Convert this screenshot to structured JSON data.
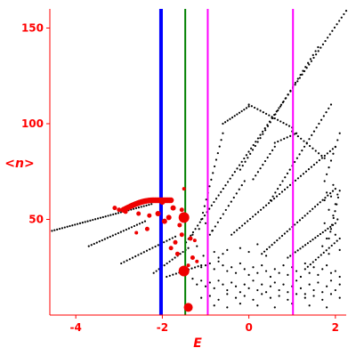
{
  "chart_data": {
    "type": "scatter",
    "title": "",
    "xlabel": "E",
    "ylabel": "<n>",
    "xlim": [
      -4.6,
      2.25
    ],
    "ylim": [
      0,
      160
    ],
    "xticks": [
      -4,
      -2,
      0,
      2
    ],
    "yticks": [
      50,
      100,
      150
    ],
    "grid": false,
    "colors": {
      "axis": "#ff0000",
      "points": "#000000",
      "markers": "#ee0000",
      "blue_line": "#0000ff",
      "green_line": "#008000",
      "magenta_line": "#ff00ff"
    },
    "vertical_lines": [
      {
        "x": -2.03,
        "color": "#0000ff",
        "width": 4
      },
      {
        "x": -1.47,
        "color": "#008000",
        "width": 2
      },
      {
        "x": -0.95,
        "color": "#ff00ff",
        "width": 2
      },
      {
        "x": 1.02,
        "color": "#ff00ff",
        "width": 2
      }
    ],
    "line_series": [
      {
        "start": [
          -4.55,
          44
        ],
        "end": [
          -2.25,
          58
        ],
        "n": 40
      },
      {
        "start": [
          -3.7,
          36
        ],
        "end": [
          -2.4,
          49
        ],
        "n": 22
      },
      {
        "start": [
          -2.95,
          27
        ],
        "end": [
          -1.7,
          41
        ],
        "n": 20
      },
      {
        "start": [
          -2.2,
          22
        ],
        "end": [
          -1.4,
          35
        ],
        "n": 14
      },
      {
        "start": [
          -1.9,
          20
        ],
        "end": [
          -1.1,
          26
        ],
        "n": 12
      },
      {
        "start": [
          -1.45,
          38
        ],
        "end": [
          2.25,
          159
        ],
        "n": 70
      },
      {
        "start": [
          -1.1,
          50
        ],
        "end": [
          -0.6,
          95
        ],
        "n": 14
      },
      {
        "start": [
          -0.6,
          100
        ],
        "end": [
          0.0,
          109
        ],
        "n": 12
      },
      {
        "start": [
          0.0,
          110
        ],
        "end": [
          1.0,
          98
        ],
        "n": 16
      },
      {
        "start": [
          1.0,
          96
        ],
        "end": [
          1.75,
          82
        ],
        "n": 12
      },
      {
        "start": [
          -0.2,
          76
        ],
        "end": [
          1.6,
          140
        ],
        "n": 32
      },
      {
        "start": [
          -0.9,
          42
        ],
        "end": [
          -0.1,
          70
        ],
        "n": 14
      },
      {
        "start": [
          0.1,
          71
        ],
        "end": [
          0.6,
          88
        ],
        "n": 10
      },
      {
        "start": [
          0.6,
          90
        ],
        "end": [
          1.1,
          95
        ],
        "n": 8
      },
      {
        "start": [
          0.5,
          60
        ],
        "end": [
          1.9,
          110
        ],
        "n": 26
      },
      {
        "start": [
          -0.4,
          42
        ],
        "end": [
          2.0,
          88
        ],
        "n": 40
      },
      {
        "start": [
          0.3,
          32
        ],
        "end": [
          2.0,
          66
        ],
        "n": 30
      },
      {
        "start": [
          0.9,
          30
        ],
        "end": [
          2.0,
          48
        ],
        "n": 20
      },
      {
        "start": [
          1.3,
          24
        ],
        "end": [
          2.1,
          40
        ],
        "n": 14
      },
      {
        "start": [
          1.75,
          70
        ],
        "end": [
          2.1,
          95
        ],
        "n": 8
      },
      {
        "start": [
          1.85,
          40
        ],
        "end": [
          2.1,
          65
        ],
        "n": 8
      }
    ],
    "scatter_points": [
      [
        -1.2,
        28
      ],
      [
        -1.1,
        25
      ],
      [
        -1.0,
        26
      ],
      [
        -0.9,
        27
      ],
      [
        -0.8,
        24
      ],
      [
        -0.7,
        28
      ],
      [
        -0.6,
        26
      ],
      [
        -0.5,
        23
      ],
      [
        -0.4,
        25
      ],
      [
        -0.3,
        22
      ],
      [
        -0.2,
        27
      ],
      [
        -0.1,
        24
      ],
      [
        0.0,
        21
      ],
      [
        0.1,
        25
      ],
      [
        0.2,
        22
      ],
      [
        0.3,
        26
      ],
      [
        0.4,
        23
      ],
      [
        0.5,
        20
      ],
      [
        0.6,
        24
      ],
      [
        0.7,
        22
      ],
      [
        0.8,
        26
      ],
      [
        0.9,
        21
      ],
      [
        1.0,
        25
      ],
      [
        1.1,
        23
      ],
      [
        1.2,
        20
      ],
      [
        1.3,
        27
      ],
      [
        1.4,
        22
      ],
      [
        1.5,
        25
      ],
      [
        1.6,
        21
      ],
      [
        1.7,
        24
      ],
      [
        1.8,
        26
      ],
      [
        1.9,
        22
      ],
      [
        2.0,
        23
      ],
      [
        2.1,
        20
      ],
      [
        -1.3,
        19
      ],
      [
        -1.2,
        16
      ],
      [
        -1.1,
        18
      ],
      [
        -1.0,
        15
      ],
      [
        -0.9,
        17
      ],
      [
        -0.8,
        14
      ],
      [
        -0.7,
        18
      ],
      [
        -0.6,
        16
      ],
      [
        -0.5,
        13
      ],
      [
        -0.4,
        17
      ],
      [
        -0.3,
        15
      ],
      [
        -0.2,
        12
      ],
      [
        -0.1,
        16
      ],
      [
        0.0,
        14
      ],
      [
        0.1,
        18
      ],
      [
        0.2,
        13
      ],
      [
        0.3,
        16
      ],
      [
        0.4,
        12
      ],
      [
        0.5,
        15
      ],
      [
        0.6,
        17
      ],
      [
        0.7,
        13
      ],
      [
        0.8,
        16
      ],
      [
        0.9,
        12
      ],
      [
        1.0,
        15
      ],
      [
        1.1,
        18
      ],
      [
        1.2,
        14
      ],
      [
        1.3,
        11
      ],
      [
        1.4,
        16
      ],
      [
        1.5,
        13
      ],
      [
        1.6,
        17
      ],
      [
        1.7,
        12
      ],
      [
        1.8,
        15
      ],
      [
        1.9,
        18
      ],
      [
        2.0,
        13
      ],
      [
        2.1,
        16
      ],
      [
        -1.1,
        9
      ],
      [
        -0.9,
        10
      ],
      [
        -0.7,
        8
      ],
      [
        -0.5,
        11
      ],
      [
        -0.3,
        9
      ],
      [
        -0.1,
        10
      ],
      [
        0.1,
        8
      ],
      [
        0.3,
        11
      ],
      [
        0.5,
        9
      ],
      [
        0.7,
        10
      ],
      [
        0.9,
        8
      ],
      [
        1.1,
        11
      ],
      [
        1.3,
        9
      ],
      [
        1.5,
        10
      ],
      [
        1.7,
        8
      ],
      [
        1.9,
        11
      ],
      [
        2.1,
        9
      ],
      [
        -0.8,
        5
      ],
      [
        -0.5,
        4
      ],
      [
        -0.2,
        6
      ],
      [
        0.2,
        5
      ],
      [
        0.6,
        4
      ],
      [
        1.0,
        6
      ],
      [
        1.4,
        5
      ],
      [
        1.8,
        4
      ],
      [
        1.75,
        60
      ],
      [
        1.8,
        64
      ],
      [
        1.9,
        62
      ],
      [
        1.95,
        68
      ],
      [
        2.0,
        58
      ],
      [
        2.05,
        63
      ],
      [
        1.85,
        55
      ],
      [
        1.95,
        52
      ],
      [
        2.05,
        50
      ],
      [
        1.75,
        48
      ],
      [
        1.9,
        45
      ],
      [
        2.0,
        42
      ],
      [
        1.8,
        40
      ],
      [
        1.7,
        36
      ],
      [
        2.1,
        34
      ],
      [
        1.85,
        32
      ],
      [
        -0.7,
        30
      ],
      [
        -0.6,
        32
      ],
      [
        -0.5,
        34
      ],
      [
        -0.8,
        33
      ],
      [
        -0.2,
        35
      ],
      [
        0.0,
        33
      ],
      [
        0.2,
        37
      ],
      [
        0.4,
        31
      ],
      [
        -1.05,
        31
      ],
      [
        -1.2,
        36
      ],
      [
        -1.3,
        42
      ],
      [
        -1.15,
        45
      ],
      [
        -1.0,
        48
      ],
      [
        -0.85,
        44
      ]
    ],
    "markers": [
      [
        -1.5,
        51,
        6
      ],
      [
        -1.5,
        23,
        6
      ],
      [
        -1.4,
        4,
        5
      ],
      [
        -1.55,
        55,
        2.5
      ],
      [
        -1.6,
        47,
        2.5
      ],
      [
        -1.75,
        56,
        3
      ],
      [
        -1.85,
        51,
        3
      ],
      [
        -1.95,
        49,
        3
      ],
      [
        -2.1,
        53,
        3
      ],
      [
        -2.3,
        52,
        2.5
      ],
      [
        -2.55,
        53,
        2.5
      ],
      [
        -2.85,
        54,
        2.5
      ],
      [
        -3.1,
        56,
        2.5
      ],
      [
        -3.0,
        55,
        2.5
      ],
      [
        -2.0,
        59,
        3
      ],
      [
        -1.55,
        42,
        2.5
      ],
      [
        -1.35,
        40,
        2.5
      ],
      [
        -1.25,
        39,
        2
      ],
      [
        -1.7,
        38,
        2.5
      ],
      [
        -2.35,
        45,
        2.5
      ],
      [
        -2.6,
        43,
        2
      ],
      [
        -1.8,
        35,
        2.5
      ],
      [
        -1.65,
        32,
        2.5
      ],
      [
        -1.3,
        30,
        2.5
      ],
      [
        -1.2,
        28,
        2
      ],
      [
        -1.4,
        26,
        2
      ],
      [
        -1.5,
        66,
        2
      ]
    ],
    "marker_arc": {
      "from": -2.9,
      "to": -1.8,
      "y_start": 55,
      "y_top": 60,
      "n": 34,
      "r": 3.2
    }
  }
}
